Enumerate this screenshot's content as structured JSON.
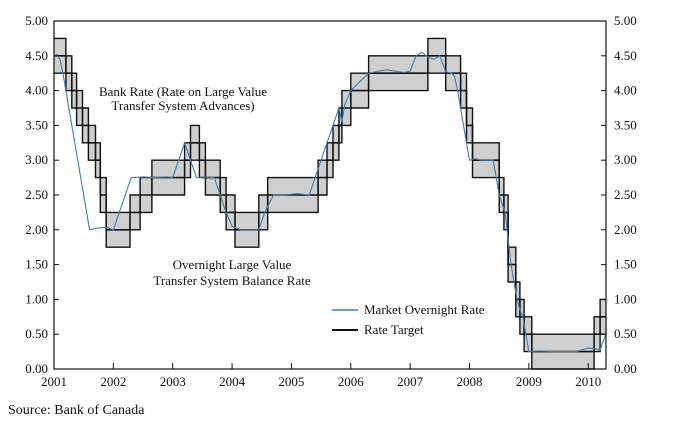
{
  "chart_data": {
    "type": "line",
    "xlim": [
      2001.0,
      2010.3
    ],
    "ylim": [
      0,
      5
    ],
    "x_ticks": [
      2001,
      2002,
      2003,
      2004,
      2005,
      2006,
      2007,
      2008,
      2009,
      2010
    ],
    "x_tick_labels": [
      "2001",
      "2002",
      "2003",
      "2004",
      "2005",
      "2006",
      "2007",
      "2008",
      "2009",
      "2010"
    ],
    "y_ticks": [
      0,
      0.5,
      1,
      1.5,
      2,
      2.5,
      3,
      3.5,
      4,
      4.5,
      5
    ],
    "y_tick_labels": [
      "0.00",
      "0.50",
      "1.00",
      "1.50",
      "2.00",
      "2.50",
      "3.00",
      "3.50",
      "4.00",
      "4.50",
      "5.00"
    ],
    "annotations": [
      {
        "lines": [
          "Bank Rate (Rate on Large Value",
          "Transfer System Advances)"
        ]
      },
      {
        "lines": [
          "Overnight Large Value",
          "Transfer System Balance Rate"
        ]
      }
    ],
    "band_color": "#cfcfcf",
    "series": [
      {
        "name": "Market Overnight Rate",
        "color": "#3a7fb5",
        "x": [
          2001.0,
          2001.05,
          2001.1,
          2001.15,
          2001.2,
          2001.25,
          2001.3,
          2001.35,
          2001.4,
          2001.45,
          2001.5,
          2001.55,
          2001.6,
          2001.7,
          2001.8,
          2001.9,
          2002.0,
          2002.1,
          2002.2,
          2002.3,
          2002.5,
          2002.7,
          2002.9,
          2003.0,
          2003.1,
          2003.2,
          2003.3,
          2003.4,
          2003.5,
          2003.7,
          2003.8,
          2003.9,
          2004.0,
          2004.15,
          2004.3,
          2004.45,
          2004.55,
          2004.7,
          2004.9,
          2005.1,
          2005.3,
          2005.4,
          2005.5,
          2005.6,
          2005.7,
          2005.8,
          2005.85,
          2005.9,
          2006.0,
          2006.3,
          2006.6,
          2006.9,
          2007.0,
          2007.1,
          2007.2,
          2007.3,
          2007.4,
          2007.5,
          2007.6,
          2007.7,
          2007.75,
          2007.8,
          2007.9,
          2008.0,
          2008.1,
          2008.2,
          2008.3,
          2008.4,
          2008.45,
          2008.5,
          2008.6,
          2008.7,
          2008.8,
          2008.85,
          2008.9,
          2009.0,
          2009.2,
          2009.4,
          2009.6,
          2009.8,
          2010.0,
          2010.2,
          2010.3
        ],
        "values": [
          4.5,
          4.52,
          4.45,
          4.25,
          4.0,
          3.75,
          3.5,
          3.25,
          3.0,
          2.75,
          2.5,
          2.25,
          2.0,
          2.02,
          2.03,
          2.03,
          2.0,
          2.25,
          2.5,
          2.75,
          2.76,
          2.75,
          2.76,
          2.75,
          3.0,
          3.25,
          3.0,
          2.75,
          2.76,
          2.75,
          2.5,
          2.25,
          2.05,
          2.0,
          2.0,
          2.0,
          2.25,
          2.5,
          2.5,
          2.52,
          2.5,
          2.75,
          3.0,
          3.25,
          3.5,
          3.75,
          3.55,
          3.8,
          4.0,
          4.25,
          4.3,
          4.26,
          4.28,
          4.5,
          4.55,
          4.48,
          4.45,
          4.5,
          4.27,
          4.25,
          4.2,
          4.0,
          3.5,
          3.0,
          3.02,
          3.0,
          3.0,
          3.0,
          2.75,
          2.5,
          2.25,
          1.5,
          1.0,
          0.85,
          0.75,
          0.25,
          0.26,
          0.25,
          0.25,
          0.25,
          0.3,
          0.28,
          0.5
        ]
      },
      {
        "name": "Rate Target",
        "color": "#111111",
        "x": [
          2001.0,
          2001.1,
          2001.2,
          2001.3,
          2001.38,
          2001.48,
          2001.58,
          2001.7,
          2001.78,
          2001.88,
          2002.0,
          2002.28,
          2002.45,
          2002.65,
          2003.0,
          2003.2,
          2003.3,
          2003.45,
          2003.55,
          2003.7,
          2003.8,
          2003.9,
          2004.05,
          2004.2,
          2004.3,
          2004.45,
          2004.6,
          2004.75,
          2004.9,
          2005.1,
          2005.3,
          2005.45,
          2005.6,
          2005.7,
          2005.75,
          2005.8,
          2005.85,
          2005.9,
          2006.0,
          2006.3,
          2006.6,
          2006.9,
          2007.0,
          2007.3,
          2007.5,
          2007.6,
          2007.75,
          2007.85,
          2007.95,
          2008.05,
          2008.2,
          2008.3,
          2008.4,
          2008.5,
          2008.58,
          2008.65,
          2008.72,
          2008.78,
          2008.85,
          2008.92,
          2008.98,
          2009.05,
          2009.25,
          2009.4,
          2009.6,
          2009.8,
          2010.0,
          2010.1,
          2010.2,
          2010.3
        ],
        "values": [
          4.5,
          4.5,
          4.25,
          4.0,
          3.75,
          3.5,
          3.25,
          3.0,
          2.5,
          2.0,
          2.0,
          2.25,
          2.5,
          2.75,
          2.75,
          3.0,
          3.25,
          3.0,
          2.75,
          2.75,
          2.5,
          2.25,
          2.0,
          2.0,
          2.0,
          2.25,
          2.5,
          2.5,
          2.5,
          2.5,
          2.5,
          2.75,
          3.0,
          3.25,
          3.25,
          3.5,
          3.75,
          3.75,
          4.0,
          4.25,
          4.25,
          4.25,
          4.25,
          4.5,
          4.5,
          4.25,
          4.25,
          4.0,
          3.5,
          3.0,
          3.0,
          3.0,
          3.0,
          2.5,
          2.25,
          1.5,
          1.5,
          1.0,
          0.75,
          0.5,
          0.5,
          0.25,
          0.25,
          0.25,
          0.25,
          0.25,
          0.25,
          0.5,
          0.75,
          0.75
        ]
      }
    ]
  },
  "source": "Source: Bank of Canada"
}
